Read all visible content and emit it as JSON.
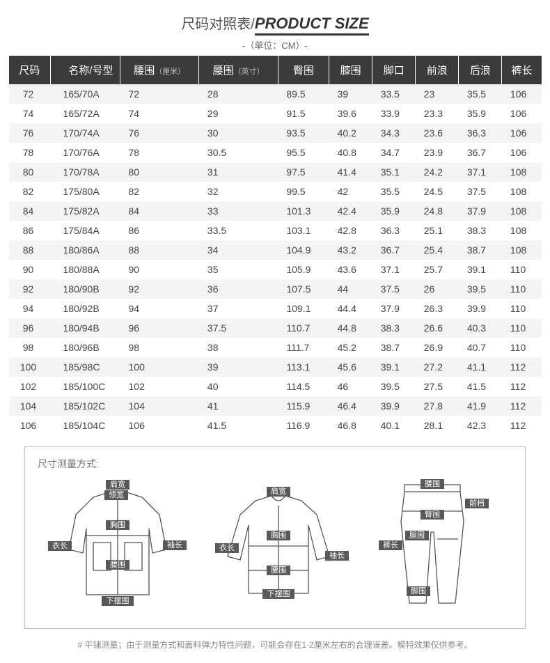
{
  "title_cn": "尺码对照表/",
  "title_en": "PRODUCT SIZE",
  "unit": "-（单位：CM）-",
  "columns": [
    {
      "label": "尺码"
    },
    {
      "label": "名称/号型"
    },
    {
      "label": "腰围",
      "sub": "（厘米）"
    },
    {
      "label": "腰围",
      "sub": "（英寸）"
    },
    {
      "label": "臀围"
    },
    {
      "label": "膝围"
    },
    {
      "label": "脚口"
    },
    {
      "label": "前浪"
    },
    {
      "label": "后浪"
    },
    {
      "label": "裤长"
    }
  ],
  "rows": [
    [
      "72",
      "165/70A",
      "72",
      "28",
      "89.5",
      "39",
      "33.5",
      "23",
      "35.5",
      "106"
    ],
    [
      "74",
      "165/72A",
      "74",
      "29",
      "91.5",
      "39.6",
      "33.9",
      "23.3",
      "35.9",
      "106"
    ],
    [
      "76",
      "170/74A",
      "76",
      "30",
      "93.5",
      "40.2",
      "34.3",
      "23.6",
      "36.3",
      "106"
    ],
    [
      "78",
      "170/76A",
      "78",
      "30.5",
      "95.5",
      "40.8",
      "34.7",
      "23.9",
      "36.7",
      "106"
    ],
    [
      "80",
      "170/78A",
      "80",
      "31",
      "97.5",
      "41.4",
      "35.1",
      "24.2",
      "37.1",
      "108"
    ],
    [
      "82",
      "175/80A",
      "82",
      "32",
      "99.5",
      "42",
      "35.5",
      "24.5",
      "37.5",
      "108"
    ],
    [
      "84",
      "175/82A",
      "84",
      "33",
      "101.3",
      "42.4",
      "35.9",
      "24.8",
      "37.9",
      "108"
    ],
    [
      "86",
      "175/84A",
      "86",
      "33.5",
      "103.1",
      "42.8",
      "36.3",
      "25.1",
      "38.3",
      "108"
    ],
    [
      "88",
      "180/86A",
      "88",
      "34",
      "104.9",
      "43.2",
      "36.7",
      "25.4",
      "38.7",
      "108"
    ],
    [
      "90",
      "180/88A",
      "90",
      "35",
      "105.9",
      "43.6",
      "37.1",
      "25.7",
      "39.1",
      "110"
    ],
    [
      "92",
      "180/90B",
      "92",
      "36",
      "107.5",
      "44",
      "37.5",
      "26",
      "39.5",
      "110"
    ],
    [
      "94",
      "180/92B",
      "94",
      "37",
      "109.1",
      "44.4",
      "37.9",
      "26.3",
      "39.9",
      "110"
    ],
    [
      "96",
      "180/94B",
      "96",
      "37.5",
      "110.7",
      "44.8",
      "38.3",
      "26.6",
      "40.3",
      "110"
    ],
    [
      "98",
      "180/96B",
      "98",
      "38",
      "111.7",
      "45.2",
      "38.7",
      "26.9",
      "40.7",
      "110"
    ],
    [
      "100",
      "185/98C",
      "100",
      "39",
      "113.1",
      "45.6",
      "39.1",
      "27.2",
      "41.1",
      "112"
    ],
    [
      "102",
      "185/100C",
      "102",
      "40",
      "114.5",
      "46",
      "39.5",
      "27.5",
      "41.5",
      "112"
    ],
    [
      "104",
      "185/102C",
      "104",
      "41",
      "115.9",
      "46.4",
      "39.9",
      "27.8",
      "41.9",
      "112"
    ],
    [
      "106",
      "185/104C",
      "106",
      "41.5",
      "116.9",
      "46.8",
      "40.1",
      "28.1",
      "42.3",
      "112"
    ]
  ],
  "measure_title": "尺寸测量方式:",
  "labels": {
    "jiankuan": "肩宽",
    "lingkuan": "领宽",
    "xiuchang": "袖长",
    "yichang": "衣长",
    "xiongwei": "胸围",
    "yaowei": "腰围",
    "xiabaiwei": "下摆围",
    "kuchang": "裤长",
    "qiandang": "前档",
    "tunwei": "臀围",
    "tuiwei": "腿围",
    "jiaowei": "脚围"
  },
  "footnote": "#   平铺测量；由于测量方式和面料弹力特性问题，可能会存在1-2厘米左右的合理误差。模特效果仅供参考。"
}
